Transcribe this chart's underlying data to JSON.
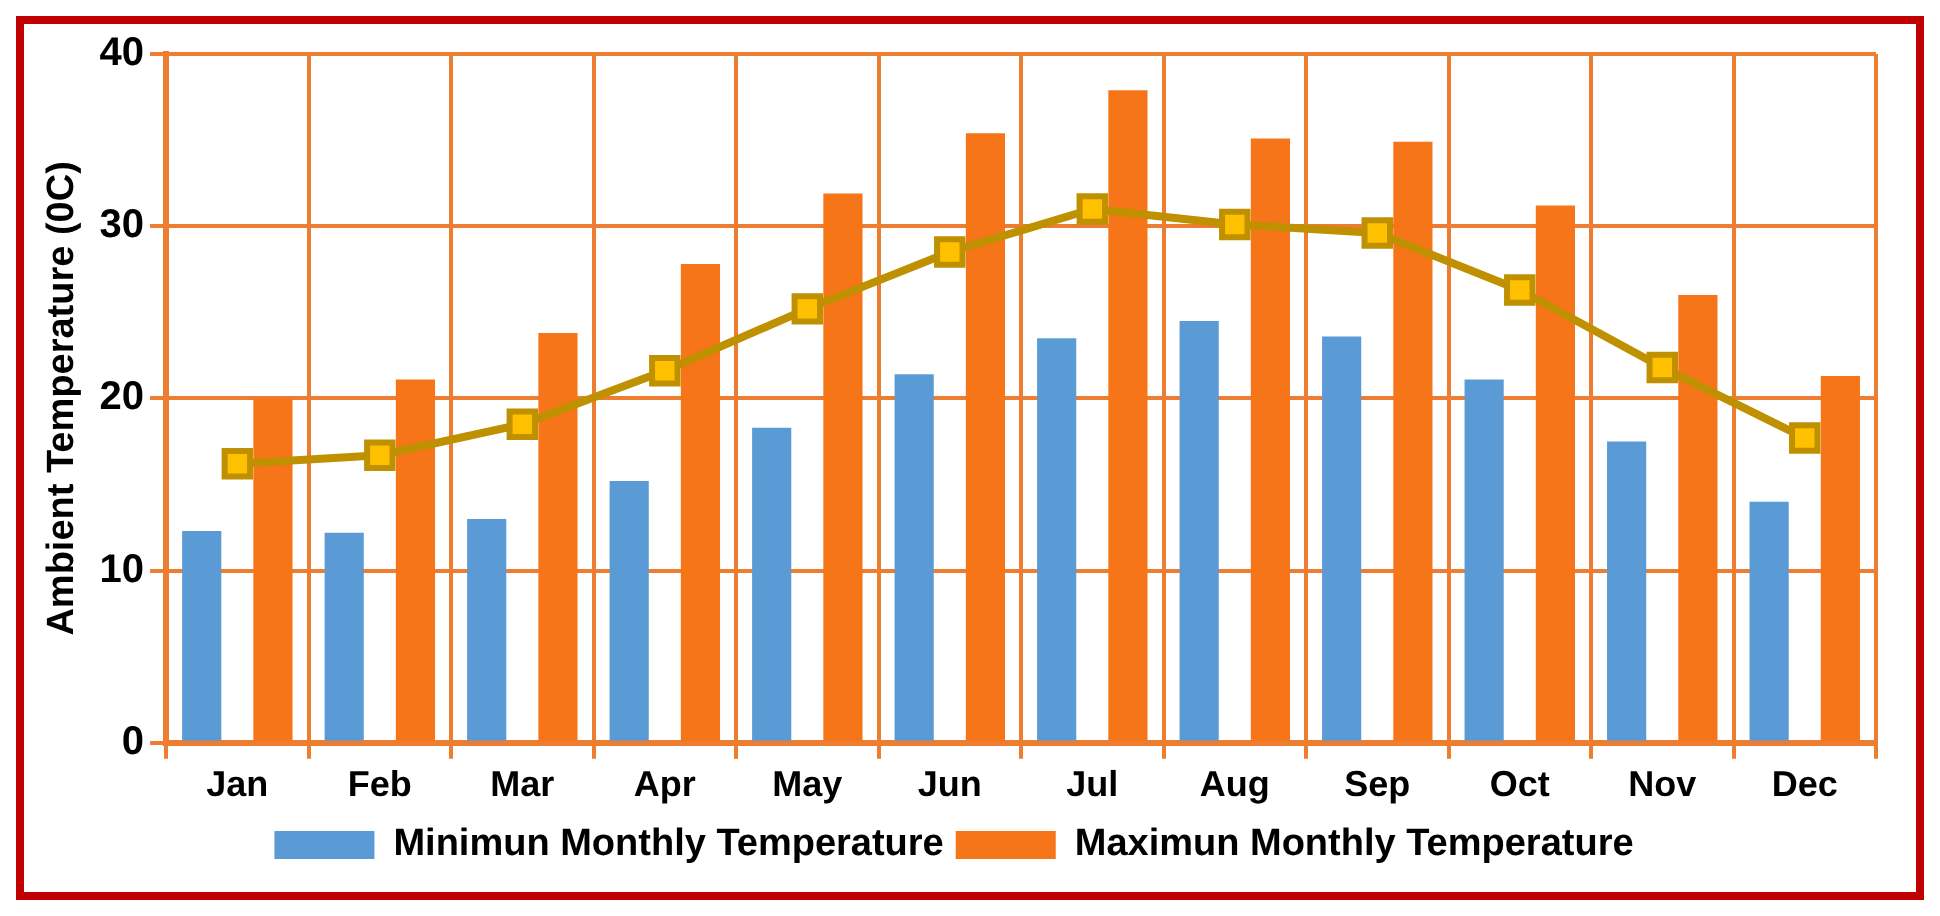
{
  "chart_data": {
    "type": "bar",
    "ylabel": "Ambient Temperature (0C)",
    "categories": [
      "Jan",
      "Feb",
      "Mar",
      "Apr",
      "May",
      "Jun",
      "Jul",
      "Aug",
      "Sep",
      "Oct",
      "Nov",
      "Dec"
    ],
    "series": [
      {
        "name": "Minimun Monthly Temperature",
        "color": "#5b9bd5",
        "values": [
          12.3,
          12.2,
          13,
          15.2,
          18.3,
          21.4,
          23.5,
          24.5,
          23.6,
          21.1,
          17.5,
          14
        ]
      },
      {
        "name": "Maximun Monthly Temperature",
        "color": "#f57518",
        "values": [
          20,
          21.1,
          23.8,
          27.8,
          31.9,
          35.4,
          37.9,
          35.1,
          34.9,
          31.2,
          26,
          21.3
        ]
      },
      {
        "type": "line",
        "color": "#bf9000",
        "values": [
          16.2,
          16.7,
          18.5,
          21.6,
          25.2,
          28.5,
          31,
          30.1,
          29.6,
          26.3,
          21.8,
          17.7
        ]
      }
    ],
    "ylim": [
      0,
      40
    ],
    "yticks": [
      0,
      10,
      20,
      30,
      40
    ],
    "grid": true,
    "legend": "bottom",
    "marker": "square"
  }
}
